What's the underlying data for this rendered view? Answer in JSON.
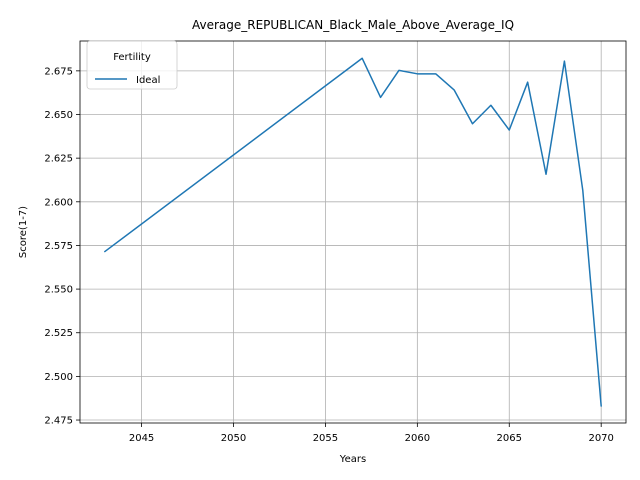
{
  "chart_data": {
    "type": "line",
    "title": "Average_REPUBLICAN_Black_Male_Above_Average_IQ",
    "xlabel": "Years",
    "ylabel": "Score(1-7)",
    "xlim": [
      2041.65,
      2071.35
    ],
    "ylim": [
      2.4733,
      2.6921
    ],
    "xticks": [
      2045,
      2050,
      2055,
      2060,
      2065,
      2070
    ],
    "yticks": [
      2.475,
      2.5,
      2.525,
      2.55,
      2.575,
      2.6,
      2.625,
      2.65,
      2.675
    ],
    "grid": true,
    "legend": {
      "title": "Fertility",
      "placement": "top-left"
    },
    "series": [
      {
        "name": "Ideal",
        "color": "#1f77b4",
        "x": [
          2043,
          2057,
          2058,
          2059,
          2060,
          2061,
          2062,
          2063,
          2064,
          2065,
          2066,
          2067,
          2068,
          2069,
          2070
        ],
        "y": [
          2.5715,
          2.6822,
          2.6598,
          2.6753,
          2.6733,
          2.6733,
          2.6641,
          2.6447,
          2.6553,
          2.6411,
          2.6685,
          2.6158,
          2.6806,
          2.6065,
          2.483
        ]
      }
    ]
  }
}
